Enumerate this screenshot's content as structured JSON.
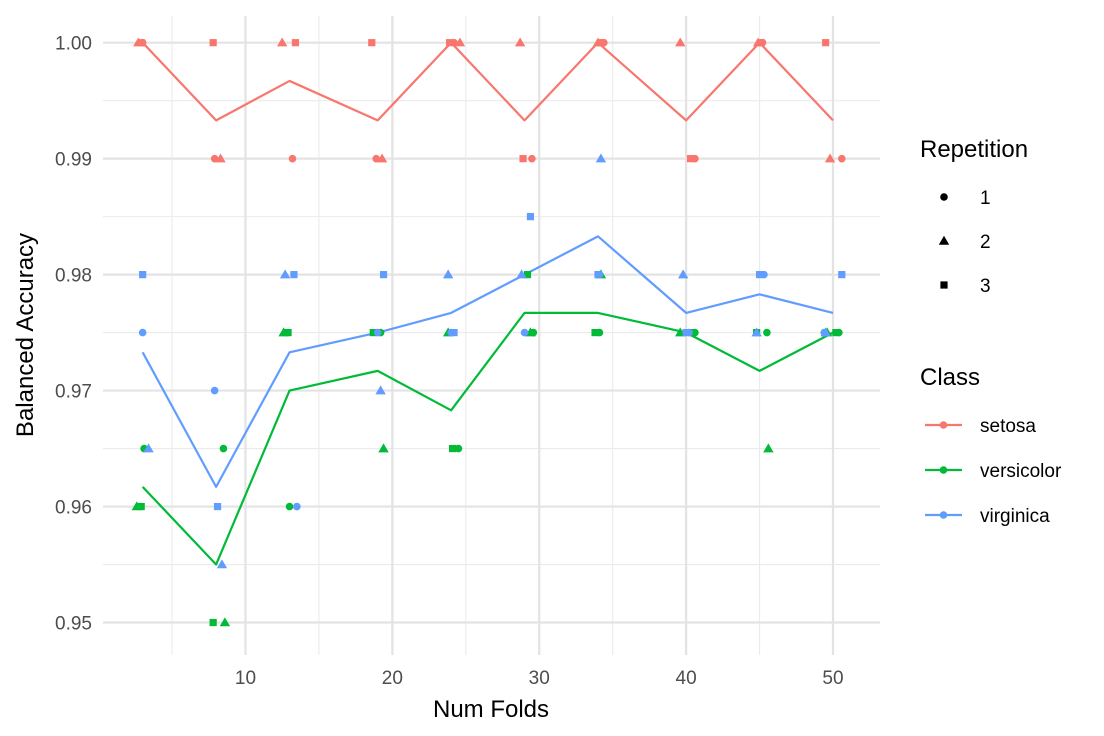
{
  "chart_data": {
    "type": "line",
    "xlabel": "Num Folds",
    "ylabel": "Balanced Accuracy",
    "xlim": [
      0.3,
      53.2
    ],
    "ylim": [
      0.9472,
      1.0023
    ],
    "x_ticks": [
      10,
      20,
      30,
      40,
      50
    ],
    "x_tick_labels": [
      "10",
      "20",
      "30",
      "40",
      "50"
    ],
    "x_minor_ticks": [
      5,
      15,
      25,
      35,
      45
    ],
    "y_ticks": [
      0.95,
      0.96,
      0.97,
      0.98,
      0.99,
      1.0
    ],
    "y_tick_labels": [
      "0.95",
      "0.96",
      "0.97",
      "0.98",
      "0.99",
      "1.00"
    ],
    "y_minor_ticks": [
      0.955,
      0.965,
      0.975,
      0.985,
      0.995
    ],
    "grid": true,
    "legend_position": "right",
    "x": [
      3,
      8,
      13,
      19,
      24,
      29,
      34,
      40,
      45,
      50
    ],
    "series": [
      {
        "name": "setosa",
        "color": "#F8766D",
        "values": [
          1.0,
          0.9933,
          0.9967,
          0.9933,
          1.0,
          0.9933,
          1.0,
          0.9933,
          1.0,
          0.9933
        ],
        "points": [
          {
            "x": 3.0,
            "y": 1.0,
            "rep": "1"
          },
          {
            "x": 2.7,
            "y": 1.0,
            "rep": "2"
          },
          {
            "x": 2.9,
            "y": 1.0,
            "rep": "3"
          },
          {
            "x": 7.9,
            "y": 0.99,
            "rep": "1"
          },
          {
            "x": 8.3,
            "y": 0.99,
            "rep": "2"
          },
          {
            "x": 7.8,
            "y": 1.0,
            "rep": "3"
          },
          {
            "x": 13.2,
            "y": 0.99,
            "rep": "1"
          },
          {
            "x": 12.5,
            "y": 1.0,
            "rep": "2"
          },
          {
            "x": 13.4,
            "y": 1.0,
            "rep": "3"
          },
          {
            "x": 18.9,
            "y": 0.99,
            "rep": "1"
          },
          {
            "x": 19.3,
            "y": 0.99,
            "rep": "2"
          },
          {
            "x": 18.6,
            "y": 1.0,
            "rep": "3"
          },
          {
            "x": 24.2,
            "y": 1.0,
            "rep": "1"
          },
          {
            "x": 24.6,
            "y": 1.0,
            "rep": "2"
          },
          {
            "x": 23.9,
            "y": 1.0,
            "rep": "3"
          },
          {
            "x": 29.5,
            "y": 0.99,
            "rep": "1"
          },
          {
            "x": 28.7,
            "y": 1.0,
            "rep": "2"
          },
          {
            "x": 28.9,
            "y": 0.99,
            "rep": "3"
          },
          {
            "x": 34.4,
            "y": 1.0,
            "rep": "1"
          },
          {
            "x": 34.0,
            "y": 1.0,
            "rep": "2"
          },
          {
            "x": 34.2,
            "y": 1.0,
            "rep": "3"
          },
          {
            "x": 40.6,
            "y": 0.99,
            "rep": "1"
          },
          {
            "x": 39.6,
            "y": 1.0,
            "rep": "2"
          },
          {
            "x": 40.3,
            "y": 0.99,
            "rep": "3"
          },
          {
            "x": 45.2,
            "y": 1.0,
            "rep": "1"
          },
          {
            "x": 44.9,
            "y": 1.0,
            "rep": "2"
          },
          {
            "x": 45.1,
            "y": 1.0,
            "rep": "3"
          },
          {
            "x": 50.6,
            "y": 0.99,
            "rep": "1"
          },
          {
            "x": 49.8,
            "y": 0.99,
            "rep": "2"
          },
          {
            "x": 49.5,
            "y": 1.0,
            "rep": "3"
          }
        ]
      },
      {
        "name": "versicolor",
        "color": "#00BA38",
        "values": [
          0.9617,
          0.955,
          0.97,
          0.9717,
          0.9683,
          0.9767,
          0.9767,
          0.975,
          0.9717,
          0.975
        ],
        "points": [
          {
            "x": 3.1,
            "y": 0.965,
            "rep": "1"
          },
          {
            "x": 2.6,
            "y": 0.96,
            "rep": "2"
          },
          {
            "x": 2.9,
            "y": 0.96,
            "rep": "3"
          },
          {
            "x": 8.5,
            "y": 0.965,
            "rep": "1"
          },
          {
            "x": 8.6,
            "y": 0.95,
            "rep": "2"
          },
          {
            "x": 7.8,
            "y": 0.95,
            "rep": "3"
          },
          {
            "x": 13.0,
            "y": 0.96,
            "rep": "1"
          },
          {
            "x": 12.6,
            "y": 0.975,
            "rep": "2"
          },
          {
            "x": 12.9,
            "y": 0.975,
            "rep": "3"
          },
          {
            "x": 19.2,
            "y": 0.975,
            "rep": "1"
          },
          {
            "x": 19.4,
            "y": 0.965,
            "rep": "2"
          },
          {
            "x": 18.7,
            "y": 0.975,
            "rep": "3"
          },
          {
            "x": 24.5,
            "y": 0.965,
            "rep": "1"
          },
          {
            "x": 23.8,
            "y": 0.975,
            "rep": "2"
          },
          {
            "x": 24.1,
            "y": 0.965,
            "rep": "3"
          },
          {
            "x": 29.6,
            "y": 0.975,
            "rep": "1"
          },
          {
            "x": 29.4,
            "y": 0.975,
            "rep": "2"
          },
          {
            "x": 29.2,
            "y": 0.98,
            "rep": "3"
          },
          {
            "x": 34.1,
            "y": 0.975,
            "rep": "1"
          },
          {
            "x": 34.2,
            "y": 0.98,
            "rep": "2"
          },
          {
            "x": 33.8,
            "y": 0.975,
            "rep": "3"
          },
          {
            "x": 40.6,
            "y": 0.975,
            "rep": "1"
          },
          {
            "x": 39.6,
            "y": 0.975,
            "rep": "2"
          },
          {
            "x": 40.4,
            "y": 0.975,
            "rep": "3"
          },
          {
            "x": 45.5,
            "y": 0.975,
            "rep": "1"
          },
          {
            "x": 45.6,
            "y": 0.965,
            "rep": "2"
          },
          {
            "x": 44.8,
            "y": 0.975,
            "rep": "3"
          },
          {
            "x": 50.4,
            "y": 0.975,
            "rep": "1"
          },
          {
            "x": 49.6,
            "y": 0.975,
            "rep": "2"
          },
          {
            "x": 50.2,
            "y": 0.975,
            "rep": "3"
          }
        ]
      },
      {
        "name": "virginica",
        "color": "#619CFF",
        "values": [
          0.9733,
          0.9617,
          0.9733,
          0.975,
          0.9767,
          0.98,
          0.9833,
          0.9767,
          0.9783,
          0.9767
        ],
        "points": [
          {
            "x": 3.0,
            "y": 0.975,
            "rep": "1"
          },
          {
            "x": 3.4,
            "y": 0.965,
            "rep": "2"
          },
          {
            "x": 3.0,
            "y": 0.98,
            "rep": "3"
          },
          {
            "x": 7.9,
            "y": 0.97,
            "rep": "1"
          },
          {
            "x": 8.4,
            "y": 0.955,
            "rep": "2"
          },
          {
            "x": 8.1,
            "y": 0.96,
            "rep": "3"
          },
          {
            "x": 13.5,
            "y": 0.96,
            "rep": "1"
          },
          {
            "x": 12.7,
            "y": 0.98,
            "rep": "2"
          },
          {
            "x": 13.3,
            "y": 0.98,
            "rep": "3"
          },
          {
            "x": 19.0,
            "y": 0.975,
            "rep": "1"
          },
          {
            "x": 19.2,
            "y": 0.97,
            "rep": "2"
          },
          {
            "x": 19.4,
            "y": 0.98,
            "rep": "3"
          },
          {
            "x": 24.0,
            "y": 0.975,
            "rep": "1"
          },
          {
            "x": 23.8,
            "y": 0.98,
            "rep": "2"
          },
          {
            "x": 24.2,
            "y": 0.975,
            "rep": "3"
          },
          {
            "x": 29.0,
            "y": 0.975,
            "rep": "1"
          },
          {
            "x": 28.8,
            "y": 0.98,
            "rep": "2"
          },
          {
            "x": 29.4,
            "y": 0.985,
            "rep": "3"
          },
          {
            "x": 34.1,
            "y": 0.98,
            "rep": "1"
          },
          {
            "x": 34.2,
            "y": 0.99,
            "rep": "2"
          },
          {
            "x": 34.0,
            "y": 0.98,
            "rep": "3"
          },
          {
            "x": 40.2,
            "y": 0.975,
            "rep": "1"
          },
          {
            "x": 39.8,
            "y": 0.98,
            "rep": "2"
          },
          {
            "x": 40.0,
            "y": 0.975,
            "rep": "3"
          },
          {
            "x": 45.3,
            "y": 0.98,
            "rep": "1"
          },
          {
            "x": 44.8,
            "y": 0.975,
            "rep": "2"
          },
          {
            "x": 45.0,
            "y": 0.98,
            "rep": "3"
          },
          {
            "x": 49.4,
            "y": 0.975,
            "rep": "1"
          },
          {
            "x": 49.5,
            "y": 0.975,
            "rep": "2"
          },
          {
            "x": 50.6,
            "y": 0.98,
            "rep": "3"
          }
        ]
      }
    ],
    "legends": {
      "repetition": {
        "title": "Repetition",
        "items": [
          {
            "label": "1",
            "shape": "circle"
          },
          {
            "label": "2",
            "shape": "triangle"
          },
          {
            "label": "3",
            "shape": "square"
          }
        ]
      },
      "class": {
        "title": "Class",
        "items": [
          {
            "label": "setosa",
            "color": "#F8766D"
          },
          {
            "label": "versicolor",
            "color": "#00BA38"
          },
          {
            "label": "virginica",
            "color": "#619CFF"
          }
        ]
      }
    }
  }
}
